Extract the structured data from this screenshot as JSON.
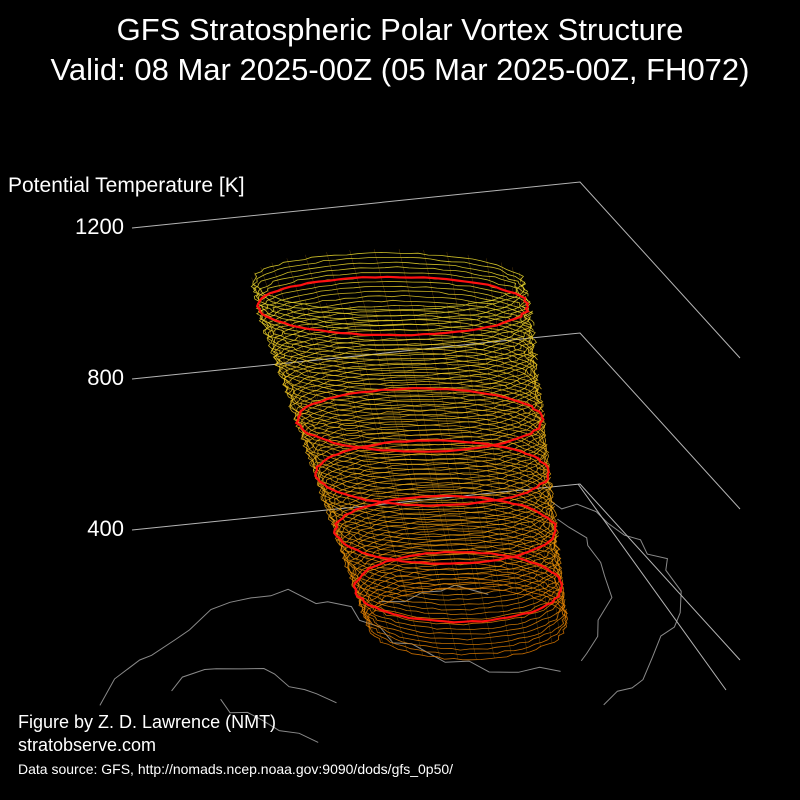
{
  "chart_data": {
    "type": "3d-isosurface",
    "title": "GFS Stratospheric Polar Vortex Structure",
    "subtitle": "Valid: 08 Mar 2025-00Z  (05 Mar 2025-00Z, FH072)",
    "zlabel": "Potential Temperature [K]",
    "z_ticks": [
      400,
      800,
      1200
    ],
    "colors": {
      "contour_low": "#e67e00",
      "contour_high": "#f0e030",
      "highlight_contour": "#ff1010",
      "coastline": "#8a8a8a",
      "axis_line": "#b4b4b4"
    }
  },
  "credits": {
    "author": "Figure by Z. D. Lawrence (NMT)",
    "website": "stratobserve.com",
    "source": "Data source: GFS, http://nomads.ncep.noaa.gov:9090/dods/gfs_0p50/"
  }
}
